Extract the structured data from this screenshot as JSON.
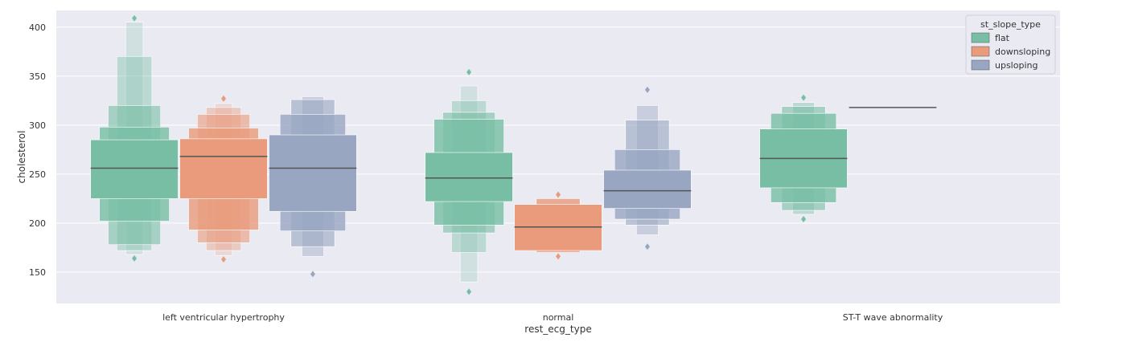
{
  "chart_data": {
    "type": "boxen",
    "title": "",
    "xlabel": "rest_ecg_type",
    "ylabel": "cholesterol",
    "ylim": [
      118,
      417
    ],
    "yticks": [
      150,
      200,
      250,
      300,
      350,
      400
    ],
    "grid": true,
    "categories": [
      "left ventricular hypertrophy",
      "normal",
      "ST-T wave abnormality"
    ],
    "legend": {
      "title": "st_slope_type",
      "placement": "top-right",
      "entries": [
        {
          "name": "flat",
          "color": "#78bea5"
        },
        {
          "name": "downsloping",
          "color": "#e99b7c"
        },
        {
          "name": "upsloping",
          "color": "#98a6c2"
        }
      ]
    },
    "groups": [
      {
        "category": "left ventricular hypertrophy",
        "series": "flat",
        "median": 256,
        "levels": [
          [
            225,
            285
          ],
          [
            202,
            298
          ],
          [
            178,
            320
          ],
          [
            172,
            370
          ],
          [
            168,
            405
          ]
        ],
        "outliers": [
          164,
          409
        ]
      },
      {
        "category": "left ventricular hypertrophy",
        "series": "downsloping",
        "median": 268,
        "levels": [
          [
            225,
            286
          ],
          [
            193,
            297
          ],
          [
            180,
            311
          ],
          [
            172,
            318
          ],
          [
            167,
            322
          ]
        ],
        "outliers": [
          163,
          327
        ]
      },
      {
        "category": "left ventricular hypertrophy",
        "series": "upsloping",
        "median": 256,
        "levels": [
          [
            212,
            290
          ],
          [
            192,
            311
          ],
          [
            176,
            326
          ],
          [
            166,
            329
          ]
        ],
        "outliers": [
          148
        ]
      },
      {
        "category": "normal",
        "series": "flat",
        "median": 246,
        "levels": [
          [
            222,
            272
          ],
          [
            198,
            306
          ],
          [
            190,
            313
          ],
          [
            170,
            325
          ],
          [
            140,
            340
          ]
        ],
        "outliers": [
          130,
          354
        ]
      },
      {
        "category": "normal",
        "series": "downsloping",
        "median": 196,
        "levels": [
          [
            172,
            219
          ],
          [
            170,
            225
          ]
        ],
        "outliers": [
          166,
          229
        ]
      },
      {
        "category": "normal",
        "series": "upsloping",
        "median": 233,
        "levels": [
          [
            215,
            254
          ],
          [
            204,
            275
          ],
          [
            198,
            305
          ],
          [
            188,
            320
          ]
        ],
        "outliers": [
          176,
          336
        ]
      },
      {
        "category": "ST-T wave abnormality",
        "series": "flat",
        "median": 266,
        "levels": [
          [
            236,
            296
          ],
          [
            221,
            312
          ],
          [
            213,
            319
          ],
          [
            209,
            323
          ]
        ],
        "outliers": [
          204,
          328
        ]
      },
      {
        "category": "ST-T wave abnormality",
        "series": "downsloping",
        "median": 318,
        "levels": [],
        "outliers": []
      }
    ]
  }
}
